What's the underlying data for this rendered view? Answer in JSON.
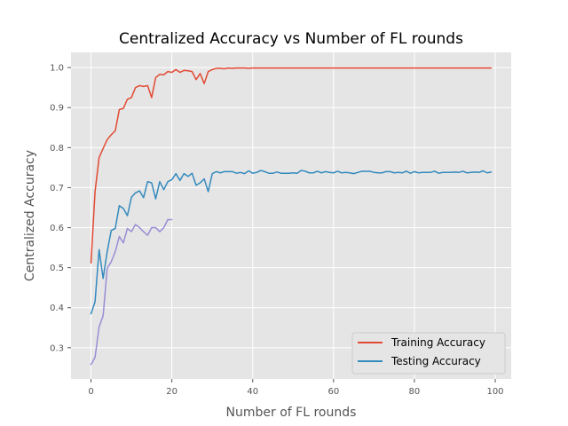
{
  "chart_data": {
    "type": "line",
    "title": "Centralized Accuracy vs Number of FL rounds",
    "xlabel": "Number of FL rounds",
    "ylabel": "Centralized Accuracy",
    "xlim": [
      -4.95,
      103.95
    ],
    "ylim": [
      0.222,
      1.038
    ],
    "x_ticks": [
      "0",
      "20",
      "40",
      "60",
      "80",
      "100"
    ],
    "y_ticks": [
      "0.3",
      "0.4",
      "0.5",
      "0.6",
      "0.7",
      "0.8",
      "0.9",
      "1.0"
    ],
    "grid": true,
    "legend_position": "lower-right",
    "series": [
      {
        "name": "Training Accuracy",
        "color": "#E24A33",
        "in_legend": true,
        "x": [
          0,
          1,
          2,
          3,
          4,
          5,
          6,
          7,
          8,
          9,
          10,
          11,
          12,
          13,
          14,
          15,
          16,
          17,
          18,
          19,
          20,
          21,
          22,
          23,
          24,
          25,
          26,
          27,
          28,
          29,
          30,
          31,
          32,
          33,
          34,
          35,
          36,
          37,
          38,
          39,
          40,
          41,
          42,
          43,
          44,
          45,
          46,
          47,
          48,
          49,
          50,
          51,
          52,
          53,
          54,
          55,
          56,
          57,
          58,
          59,
          60,
          61,
          62,
          63,
          64,
          65,
          66,
          67,
          68,
          69,
          70,
          71,
          72,
          73,
          74,
          75,
          76,
          77,
          78,
          79,
          80,
          81,
          82,
          83,
          84,
          85,
          86,
          87,
          88,
          89,
          90,
          91,
          92,
          93,
          94,
          95,
          96,
          97,
          98,
          99
        ],
        "y": [
          0.512,
          0.69,
          0.775,
          0.798,
          0.82,
          0.832,
          0.842,
          0.895,
          0.898,
          0.921,
          0.925,
          0.95,
          0.955,
          0.953,
          0.955,
          0.925,
          0.975,
          0.983,
          0.982,
          0.99,
          0.988,
          0.995,
          0.988,
          0.993,
          0.992,
          0.99,
          0.97,
          0.985,
          0.96,
          0.99,
          0.995,
          0.998,
          0.998,
          0.997,
          0.999,
          0.998,
          0.999,
          0.999,
          0.999,
          0.998,
          0.999,
          0.999,
          0.999,
          0.999,
          0.999,
          0.999,
          0.999,
          0.999,
          0.999,
          0.999,
          0.999,
          0.999,
          0.999,
          0.999,
          0.999,
          0.999,
          0.999,
          0.999,
          0.999,
          0.999,
          0.999,
          0.999,
          0.999,
          0.999,
          0.999,
          0.999,
          0.999,
          0.999,
          0.999,
          0.999,
          0.999,
          0.999,
          0.999,
          0.999,
          0.999,
          0.999,
          0.999,
          0.999,
          0.999,
          0.999,
          0.999,
          0.999,
          0.999,
          0.999,
          0.999,
          0.999,
          0.999,
          0.999,
          0.999,
          0.999,
          0.999,
          0.999,
          0.999,
          0.999,
          0.999,
          0.999,
          0.999,
          0.999,
          0.999,
          0.999
        ]
      },
      {
        "name": "Testing Accuracy",
        "color": "#348ABD",
        "in_legend": true,
        "x": [
          0,
          1,
          2,
          3,
          4,
          5,
          6,
          7,
          8,
          9,
          10,
          11,
          12,
          13,
          14,
          15,
          16,
          17,
          18,
          19,
          20,
          21,
          22,
          23,
          24,
          25,
          26,
          27,
          28,
          29,
          30,
          31,
          32,
          33,
          34,
          35,
          36,
          37,
          38,
          39,
          40,
          41,
          42,
          43,
          44,
          45,
          46,
          47,
          48,
          49,
          50,
          51,
          52,
          53,
          54,
          55,
          56,
          57,
          58,
          59,
          60,
          61,
          62,
          63,
          64,
          65,
          66,
          67,
          68,
          69,
          70,
          71,
          72,
          73,
          74,
          75,
          76,
          77,
          78,
          79,
          80,
          81,
          82,
          83,
          84,
          85,
          86,
          87,
          88,
          89,
          90,
          91,
          92,
          93,
          94,
          95,
          96,
          97,
          98,
          99
        ],
        "y": [
          0.385,
          0.415,
          0.545,
          0.473,
          0.54,
          0.593,
          0.598,
          0.655,
          0.648,
          0.63,
          0.676,
          0.687,
          0.692,
          0.675,
          0.715,
          0.712,
          0.672,
          0.715,
          0.695,
          0.715,
          0.72,
          0.735,
          0.718,
          0.735,
          0.728,
          0.736,
          0.706,
          0.712,
          0.722,
          0.69,
          0.735,
          0.74,
          0.737,
          0.74,
          0.74,
          0.74,
          0.736,
          0.738,
          0.735,
          0.742,
          0.736,
          0.738,
          0.743,
          0.74,
          0.736,
          0.736,
          0.739,
          0.736,
          0.736,
          0.736,
          0.737,
          0.736,
          0.743,
          0.741,
          0.737,
          0.737,
          0.741,
          0.737,
          0.74,
          0.738,
          0.737,
          0.741,
          0.737,
          0.738,
          0.737,
          0.735,
          0.738,
          0.741,
          0.741,
          0.741,
          0.738,
          0.737,
          0.737,
          0.74,
          0.74,
          0.737,
          0.738,
          0.737,
          0.741,
          0.736,
          0.74,
          0.737,
          0.738,
          0.738,
          0.738,
          0.741,
          0.736,
          0.738,
          0.738,
          0.738,
          0.739,
          0.738,
          0.741,
          0.737,
          0.738,
          0.739,
          0.738,
          0.742,
          0.737,
          0.739
        ]
      },
      {
        "color": "#988ED5",
        "in_legend": false,
        "x": [
          0,
          1,
          2,
          3,
          4,
          5,
          6,
          7,
          8,
          9,
          10,
          11,
          12,
          13,
          14,
          15,
          16,
          17,
          18,
          19,
          20
        ],
        "y": [
          0.258,
          0.276,
          0.352,
          0.38,
          0.498,
          0.515,
          0.54,
          0.578,
          0.562,
          0.598,
          0.59,
          0.608,
          0.6,
          0.59,
          0.581,
          0.6,
          0.6,
          0.59,
          0.6,
          0.62,
          0.62
        ]
      }
    ]
  }
}
